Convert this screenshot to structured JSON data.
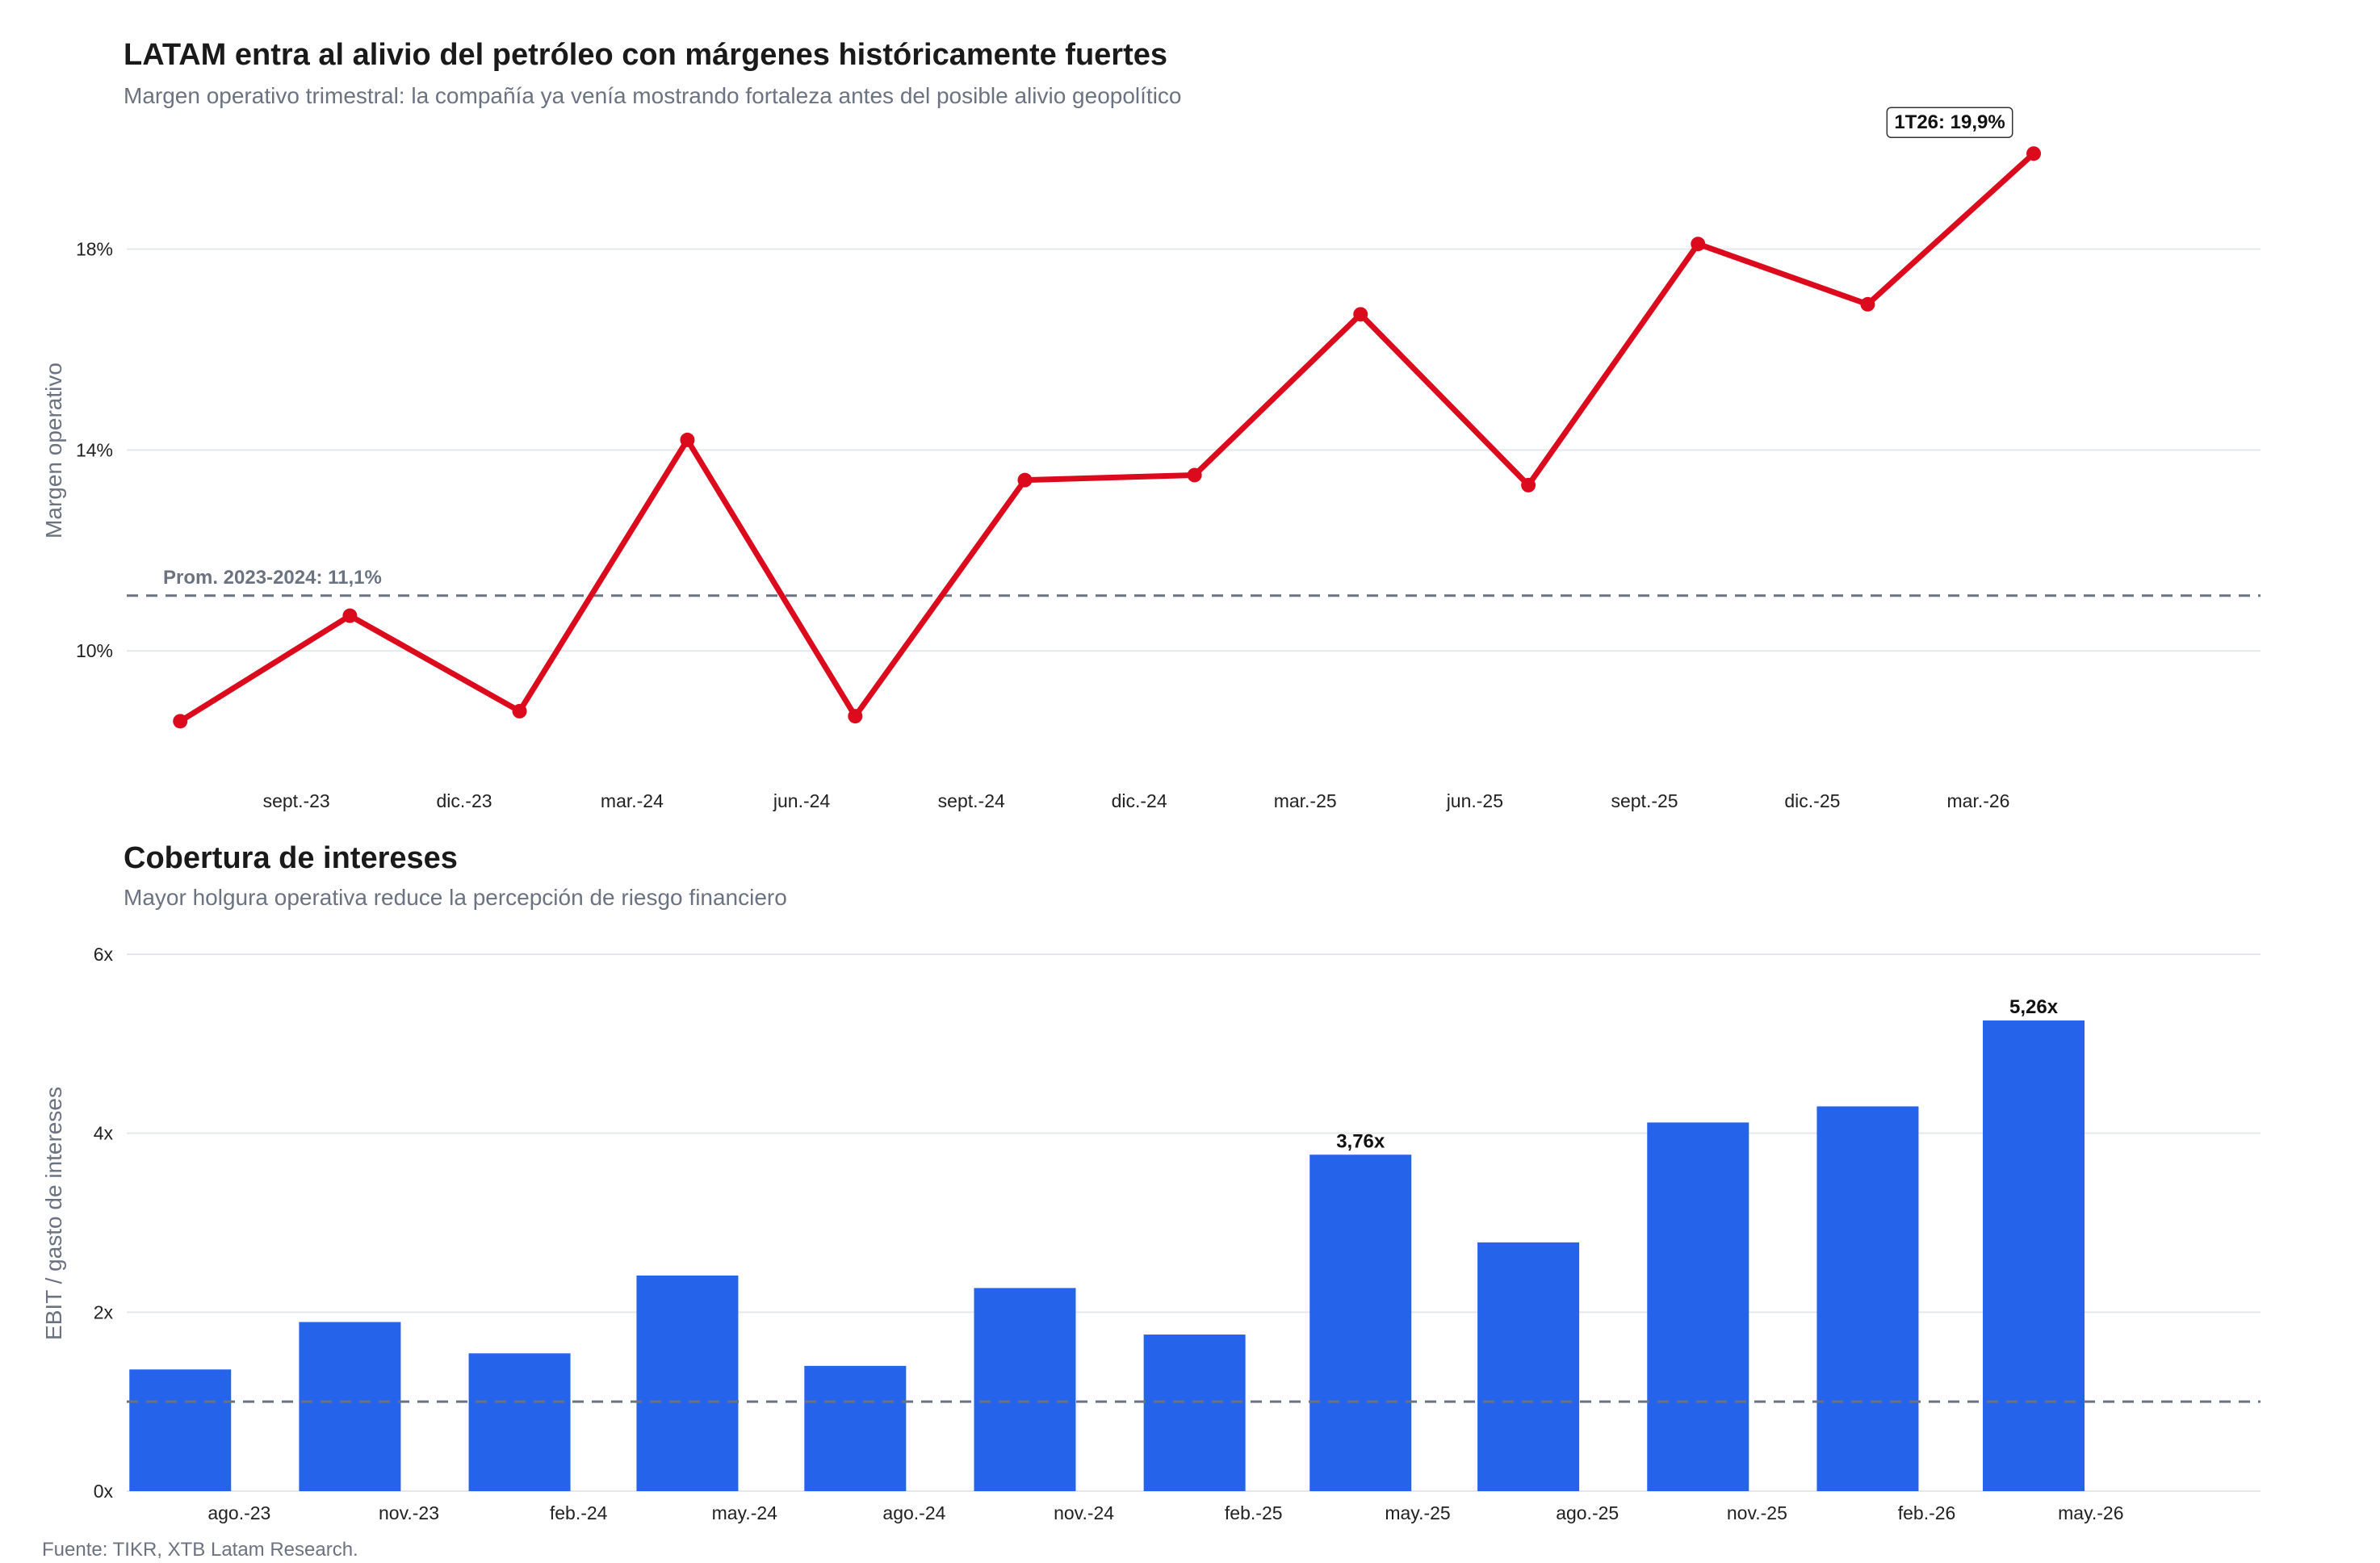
{
  "caption": "Fuente: TIKR, XTB Latam Research.",
  "colors": {
    "line": "#dc0a1d",
    "bar": "#2563eb",
    "grid": "#e5e7eb",
    "reference": "#6b7280"
  },
  "chart_data": [
    {
      "type": "line",
      "title": "LATAM entra al alivio del petróleo con márgenes históricamente fuertes",
      "subtitle": "Margen operativo trimestral: la compañía ya venía mostrando fortaleza antes del posible alivio geopolítico",
      "ylabel": "Margen operativo",
      "xlabel": "",
      "x": [
        "2023-06-30",
        "2023-09-30",
        "2023-12-31",
        "2024-03-31",
        "2024-06-30",
        "2024-09-30",
        "2024-12-31",
        "2025-03-31",
        "2025-06-30",
        "2025-09-30",
        "2025-12-31",
        "2026-03-31"
      ],
      "values": [
        8.6,
        10.7,
        8.8,
        14.2,
        8.7,
        13.4,
        13.5,
        16.7,
        13.3,
        18.1,
        16.9,
        19.9
      ],
      "x_ticks": [
        "sept.-23",
        "dic.-23",
        "mar.-24",
        "jun.-24",
        "sept.-24",
        "dic.-24",
        "mar.-25",
        "jun.-25",
        "sept.-25",
        "dic.-25",
        "mar.-26"
      ],
      "y_ticks": [
        "10%",
        "14%",
        "18%"
      ],
      "ylim": [
        7.4,
        20.9
      ],
      "reference": {
        "value": 11.1,
        "label": "Prom. 2023-2024: 11,1%"
      },
      "annotation": {
        "label": "1T26: 19,9%"
      },
      "grid": true,
      "legend": "none"
    },
    {
      "type": "bar",
      "title": "Cobertura de intereses",
      "subtitle": "Mayor holgura operativa reduce la percepción de riesgo financiero",
      "ylabel": "EBIT / gasto de intereses",
      "xlabel": "",
      "x": [
        "2023-06-30",
        "2023-09-30",
        "2023-12-31",
        "2024-03-31",
        "2024-06-30",
        "2024-09-30",
        "2024-12-31",
        "2025-03-31",
        "2025-06-30",
        "2025-09-30",
        "2025-12-31",
        "2026-03-31"
      ],
      "values": [
        1.36,
        1.89,
        1.54,
        2.41,
        1.4,
        2.27,
        1.75,
        3.76,
        2.78,
        4.12,
        4.3,
        5.26
      ],
      "x_ticks": [
        "ago.-23",
        "nov.-23",
        "feb.-24",
        "may.-24",
        "ago.-24",
        "nov.-24",
        "feb.-25",
        "may.-25",
        "ago.-25",
        "nov.-25",
        "feb.-26",
        "may.-26"
      ],
      "y_ticks": [
        "0x",
        "2x",
        "4x",
        "6x"
      ],
      "ylim": [
        0,
        6
      ],
      "reference": {
        "value": 1.0,
        "label": ""
      },
      "data_labels": [
        {
          "x": "2025-03-31",
          "label": "3,76x"
        },
        {
          "x": "2026-03-31",
          "label": "5,26x"
        }
      ],
      "grid": true,
      "legend": "none"
    }
  ]
}
